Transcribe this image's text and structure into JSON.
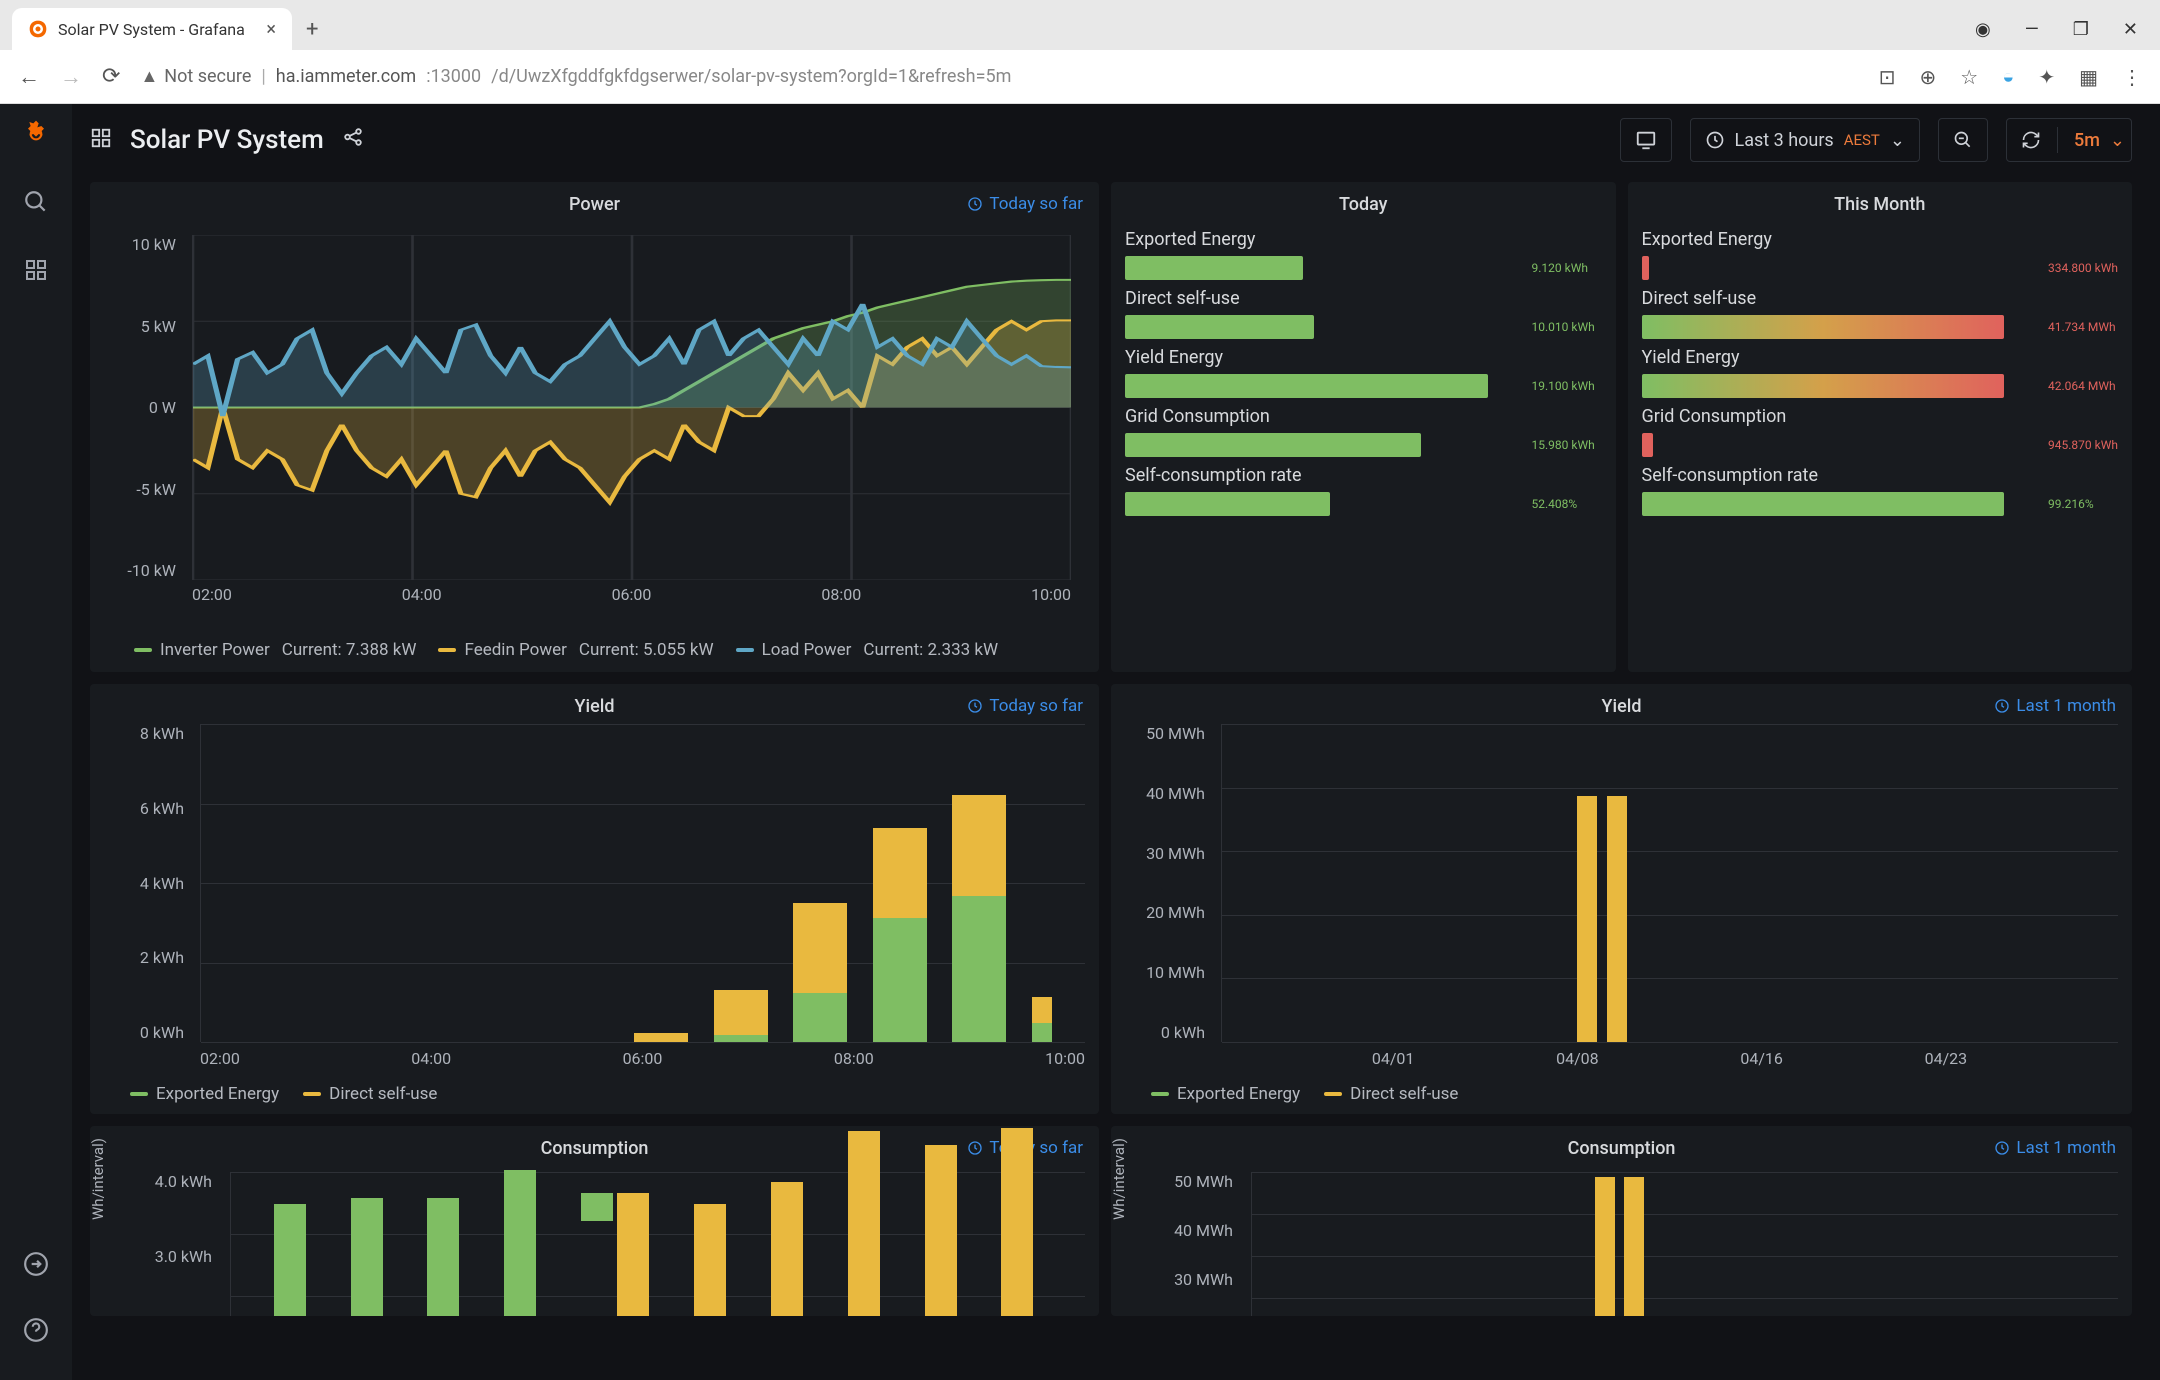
{
  "browser": {
    "tab_title": "Solar PV System - Grafana",
    "url_host": "ha.iammeter.com",
    "url_port": ":13000",
    "url_path": "/d/UwzXfgddfgkfdgserwer/solar-pv-system?orgId=1&refresh=5m",
    "not_secure": "Not secure"
  },
  "header": {
    "title": "Solar PV System",
    "time_label": "Last 3 hours",
    "tz": "AEST",
    "refresh": "5m"
  },
  "power": {
    "title": "Power",
    "link": "Today so far",
    "ylim": [
      -10,
      10
    ],
    "yticks": [
      "10 kW",
      "5 kW",
      "0 W",
      "-5 kW",
      "-10 kW"
    ],
    "xticks": [
      "02:00",
      "04:00",
      "06:00",
      "08:00",
      "10:00"
    ],
    "legend": [
      {
        "name": "Inverter Power",
        "extra": "Current: 7.388 kW",
        "color": "#7fbe63"
      },
      {
        "name": "Feedin Power",
        "extra": "Current: 5.055 kW",
        "color": "#e9b93f"
      },
      {
        "name": "Load Power",
        "extra": "Current: 2.333 kW",
        "color": "#5fa7c6"
      }
    ],
    "series_inverter": [
      0,
      0,
      0,
      0,
      0,
      0,
      0,
      0,
      0,
      0,
      0,
      0,
      0,
      0,
      0,
      0,
      0,
      0,
      0,
      0,
      0,
      0,
      0,
      0,
      0,
      0,
      0,
      0,
      0,
      0,
      0,
      0.2,
      0.5,
      1.0,
      1.5,
      2.0,
      2.5,
      3.0,
      3.5,
      4.0,
      4.3,
      4.6,
      4.8,
      5.0,
      5.3,
      5.5,
      5.8,
      6.0,
      6.2,
      6.4,
      6.6,
      6.8,
      7.0,
      7.1,
      7.2,
      7.3,
      7.35,
      7.38,
      7.4,
      7.4
    ],
    "series_load": [
      2.5,
      3.0,
      -0.5,
      2.8,
      3.2,
      2.0,
      2.5,
      4.0,
      4.5,
      2.0,
      0.8,
      2.0,
      3.0,
      3.5,
      2.5,
      4.0,
      3.0,
      2.0,
      4.5,
      4.8,
      3.0,
      2.0,
      3.5,
      2.0,
      1.5,
      2.5,
      3.0,
      4.0,
      5.0,
      3.5,
      2.5,
      3.0,
      4.0,
      2.5,
      4.5,
      5.0,
      3.0,
      4.0,
      4.5,
      3.5,
      2.5,
      4.0,
      3.0,
      5.0,
      4.5,
      6.0,
      3.5,
      4.0,
      3.0,
      2.5,
      4.0,
      3.5,
      5.0,
      4.0,
      3.0,
      2.5,
      3.0,
      2.4,
      2.35,
      2.33
    ],
    "series_feedin": [
      -3.0,
      -3.5,
      0,
      -3.0,
      -3.5,
      -2.5,
      -3.0,
      -4.5,
      -4.8,
      -2.5,
      -1.0,
      -2.5,
      -3.5,
      -4.0,
      -3.0,
      -4.5,
      -3.5,
      -2.5,
      -5.0,
      -5.2,
      -3.5,
      -2.5,
      -4.0,
      -2.5,
      -2.0,
      -3.0,
      -3.5,
      -4.5,
      -5.5,
      -4.0,
      -3.0,
      -2.5,
      -3.0,
      -1.0,
      -2.0,
      -2.5,
      0,
      -0.5,
      -0.5,
      0.5,
      2.0,
      1.0,
      2.0,
      0.5,
      1.0,
      0,
      3.0,
      2.5,
      3.5,
      4.0,
      3.0,
      3.5,
      2.5,
      3.5,
      4.5,
      5.0,
      4.5,
      5.0,
      5.05,
      5.05
    ]
  },
  "today": {
    "title": "Today",
    "metrics": [
      {
        "label": "Exported Energy",
        "value": "9.120 kWh",
        "pct": 45,
        "bar_color": "#7fbe63",
        "val_color": ""
      },
      {
        "label": "Direct self-use",
        "value": "10.010 kWh",
        "pct": 48,
        "bar_color": "#7fbe63",
        "val_color": ""
      },
      {
        "label": "Yield Energy",
        "value": "19.100 kWh",
        "pct": 92,
        "bar_color": "#7fbe63",
        "val_color": ""
      },
      {
        "label": "Grid Consumption",
        "value": "15.980 kWh",
        "pct": 75,
        "bar_color": "#7fbe63",
        "val_color": ""
      },
      {
        "label": "Self-consumption rate",
        "value": "52.408%",
        "pct": 52,
        "bar_color": "#7fbe63",
        "val_color": ""
      }
    ]
  },
  "month": {
    "title": "This Month",
    "metrics": [
      {
        "label": "Exported Energy",
        "value": "334.800 kWh",
        "pct": 2,
        "bar_color": "#e0625d",
        "val_color": "red"
      },
      {
        "label": "Direct self-use",
        "value": "41.734 MWh",
        "pct": 92,
        "bar_color": "grad",
        "val_color": "red"
      },
      {
        "label": "Yield Energy",
        "value": "42.064 MWh",
        "pct": 92,
        "bar_color": "grad",
        "val_color": "red"
      },
      {
        "label": "Grid Consumption",
        "value": "945.870 kWh",
        "pct": 3,
        "bar_color": "#e0625d",
        "val_color": "red"
      },
      {
        "label": "Self-consumption rate",
        "value": "99.216%",
        "pct": 92,
        "bar_color": "#7fbe63",
        "val_color": ""
      }
    ]
  },
  "yield_today": {
    "title": "Yield",
    "link": "Today so far",
    "yticks": [
      "8 kWh",
      "6 kWh",
      "4 kWh",
      "2 kWh",
      "0 kWh"
    ],
    "ylim": [
      0,
      8
    ],
    "xticks": [
      "02:00",
      "04:00",
      "06:00",
      "08:00",
      "10:00"
    ],
    "legend": [
      {
        "name": "Exported Energy",
        "color": "#7fbe63"
      },
      {
        "name": "Direct self-use",
        "color": "#e9b93f"
      }
    ],
    "bars": [
      {
        "x": 0.49,
        "exp": 0,
        "dir": 0.25
      },
      {
        "x": 0.58,
        "exp": 0.2,
        "dir": 1.2
      },
      {
        "x": 0.67,
        "exp": 1.3,
        "dir": 2.4
      },
      {
        "x": 0.76,
        "exp": 3.3,
        "dir": 2.4
      },
      {
        "x": 0.85,
        "exp": 3.9,
        "dir": 2.7
      },
      {
        "x": 0.94,
        "exp": 0.5,
        "dir": 0.7,
        "half": true
      }
    ]
  },
  "yield_month": {
    "title": "Yield",
    "link": "Last 1 month",
    "yticks": [
      "50 MWh",
      "40 MWh",
      "30 MWh",
      "20 MWh",
      "10 MWh",
      "0 kWh"
    ],
    "ylim": [
      0,
      50
    ],
    "xticks": [
      "04/01",
      "04/08",
      "04/16",
      "04/23"
    ],
    "legend": [
      {
        "name": "Exported Energy",
        "color": "#7fbe63"
      },
      {
        "name": "Direct self-use",
        "color": "#e9b93f"
      }
    ],
    "bars": [
      {
        "x": 0.396,
        "exp": 0,
        "dir": 41
      },
      {
        "x": 0.43,
        "exp": 0,
        "dir": 41
      }
    ]
  },
  "cons_today": {
    "title": "Consumption",
    "link": "Today so far",
    "yticks_partial": [
      "4.0 kWh",
      "3.0 kWh"
    ],
    "ylabel": "Wh/interval)",
    "bars": [
      {
        "x": 0.05,
        "a": 2.0,
        "b": 0,
        "c": 0
      },
      {
        "x": 0.14,
        "a": 2.1,
        "b": 0,
        "c": 0
      },
      {
        "x": 0.23,
        "a": 2.1,
        "b": 0,
        "c": 0
      },
      {
        "x": 0.32,
        "a": 2.6,
        "b": 0,
        "c": 0.1
      },
      {
        "x": 0.41,
        "a": 0.5,
        "b": 2.2,
        "c": 0
      },
      {
        "x": 0.5,
        "a": 0,
        "b": 2.0,
        "c": 0
      },
      {
        "x": 0.59,
        "a": 0,
        "b": 2.4,
        "c": 0
      },
      {
        "x": 0.68,
        "a": 0,
        "b": 3.3,
        "c": 0
      },
      {
        "x": 0.77,
        "a": 0,
        "b": 3.05,
        "c": 0
      },
      {
        "x": 0.86,
        "a": 0,
        "b": 3.35,
        "c": 0
      }
    ]
  },
  "cons_month": {
    "title": "Consumption",
    "link": "Last 1 month",
    "yticks_partial": [
      "50 MWh",
      "40 MWh",
      "30 MWh"
    ],
    "ylabel": "Wh/interval)",
    "bars": [
      {
        "x": 0.396,
        "a": 0,
        "b": 41
      },
      {
        "x": 0.43,
        "a": 0,
        "b": 41
      }
    ]
  },
  "colors": {
    "green": "#7fbe63",
    "yellow": "#e9b93f",
    "blue": "#5fa7c6",
    "red": "#e0625d",
    "panel_bg": "#181b1f",
    "grid_line": "#2e3137",
    "text": "#d8dadd",
    "text_muted": "#aeb3bb"
  }
}
